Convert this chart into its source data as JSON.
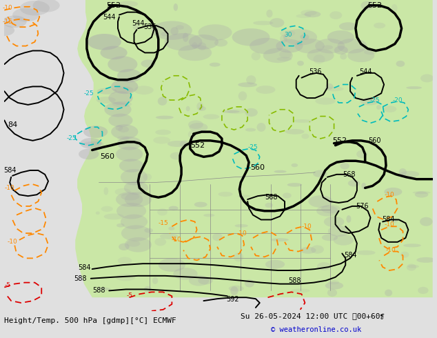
{
  "title_left": "Height/Temp. 500 hPa [gdmp][°C] ECMWF",
  "title_right": "Su 26-05-2024 12:00 UTC ❠00+60❡",
  "copyright": "© weatheronline.co.uk",
  "bg_color": "#e0e0e0",
  "green_fill_color": "#c8e8a0",
  "contour_black_color": "#000000",
  "contour_cyan_color": "#00bbbb",
  "contour_orange_color": "#ff8800",
  "contour_red_color": "#dd0000",
  "contour_lgreen_color": "#88bb00",
  "footer_text_color": "#000000",
  "copyright_color": "#0000cc",
  "figsize": [
    6.34,
    4.9
  ],
  "dpi": 100
}
